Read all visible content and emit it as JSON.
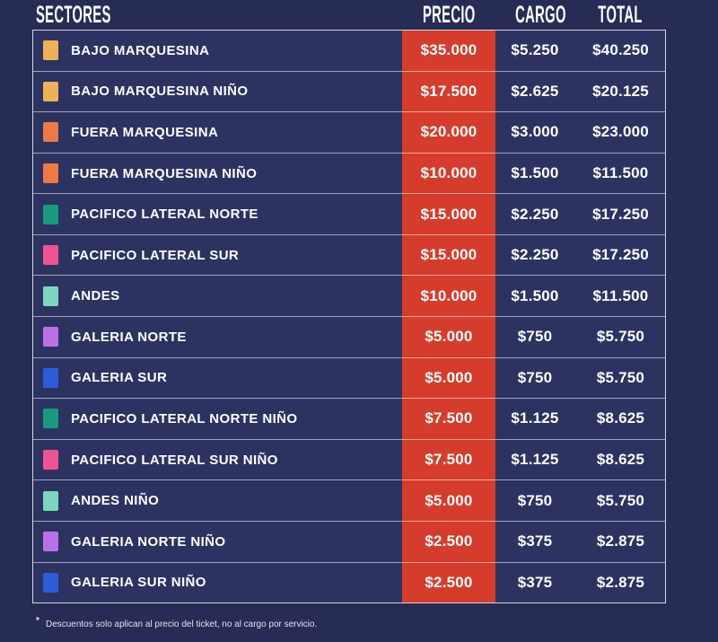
{
  "page": {
    "background_color": "#262c55",
    "row_background_color": "#2d3361",
    "price_band_color": "#d53c2c",
    "text_color": "#ffffff"
  },
  "table": {
    "headers": {
      "sector": "SECTORES",
      "price": "PRECIO",
      "charge": "CARGO",
      "total": "TOTAL"
    },
    "rows": [
      {
        "sector": "BAJO MARQUESINA",
        "color": "#edb157",
        "price": "$35.000",
        "charge": "$5.250",
        "total": "$40.250"
      },
      {
        "sector": "BAJO MARQUESINA NIÑO",
        "color": "#edb157",
        "price": "$17.500",
        "charge": "$2.625",
        "total": "$20.125"
      },
      {
        "sector": "FUERA MARQUESINA",
        "color": "#ec7a47",
        "price": "$20.000",
        "charge": "$3.000",
        "total": "$23.000"
      },
      {
        "sector": "FUERA MARQUESINA NIÑO",
        "color": "#ec7a47",
        "price": "$10.000",
        "charge": "$1.500",
        "total": "$11.500"
      },
      {
        "sector": "PACIFICO LATERAL NORTE",
        "color": "#189a7f",
        "price": "$15.000",
        "charge": "$2.250",
        "total": "$17.250"
      },
      {
        "sector": "PACIFICO LATERAL SUR",
        "color": "#ee5493",
        "price": "$15.000",
        "charge": "$2.250",
        "total": "$17.250"
      },
      {
        "sector": "ANDES",
        "color": "#7fd4c2",
        "price": "$10.000",
        "charge": "$1.500",
        "total": "$11.500"
      },
      {
        "sector": "GALERIA NORTE",
        "color": "#b971e8",
        "price": "$5.000",
        "charge": "$750",
        "total": "$5.750"
      },
      {
        "sector": "GALERIA SUR",
        "color": "#2d5cd9",
        "price": "$5.000",
        "charge": "$750",
        "total": "$5.750"
      },
      {
        "sector": "PACIFICO LATERAL NORTE NIÑO",
        "color": "#189a7f",
        "price": "$7.500",
        "charge": "$1.125",
        "total": "$8.625"
      },
      {
        "sector": "PACIFICO LATERAL SUR NIÑO",
        "color": "#ee5493",
        "price": "$7.500",
        "charge": "$1.125",
        "total": "$8.625"
      },
      {
        "sector": "ANDES NIÑO",
        "color": "#7fd4c2",
        "price": "$5.000",
        "charge": "$750",
        "total": "$5.750"
      },
      {
        "sector": "GALERIA NORTE NIÑO",
        "color": "#b971e8",
        "price": "$2.500",
        "charge": "$375",
        "total": "$2.875"
      },
      {
        "sector": "GALERIA SUR NIÑO",
        "color": "#2d5cd9",
        "price": "$2.500",
        "charge": "$375",
        "total": "$2.875"
      }
    ]
  },
  "footnote": {
    "marker": "*",
    "text": "Descuentos solo aplican al precio del ticket, no al cargo por servicio."
  },
  "chart_data": {
    "type": "table",
    "title": "Precios por sector",
    "columns": [
      "SECTORES",
      "PRECIO",
      "CARGO",
      "TOTAL"
    ],
    "rows": [
      [
        "BAJO MARQUESINA",
        35000,
        5250,
        40250
      ],
      [
        "BAJO MARQUESINA NIÑO",
        17500,
        2625,
        20125
      ],
      [
        "FUERA MARQUESINA",
        20000,
        3000,
        23000
      ],
      [
        "FUERA MARQUESINA NIÑO",
        10000,
        1500,
        11500
      ],
      [
        "PACIFICO LATERAL NORTE",
        15000,
        2250,
        17250
      ],
      [
        "PACIFICO LATERAL SUR",
        15000,
        2250,
        17250
      ],
      [
        "ANDES",
        10000,
        1500,
        11500
      ],
      [
        "GALERIA NORTE",
        5000,
        750,
        5750
      ],
      [
        "GALERIA SUR",
        5000,
        750,
        5750
      ],
      [
        "PACIFICO LATERAL NORTE NIÑO",
        7500,
        1125,
        8625
      ],
      [
        "PACIFICO LATERAL SUR NIÑO",
        7500,
        1125,
        8625
      ],
      [
        "ANDES NIÑO",
        5000,
        750,
        5750
      ],
      [
        "GALERIA NORTE NIÑO",
        2500,
        375,
        2875
      ],
      [
        "GALERIA SUR NIÑO",
        2500,
        375,
        2875
      ]
    ],
    "notes": "Highlighted PRECIO column rendered on red band #d53c2c; each sector has a legend color swatch."
  }
}
